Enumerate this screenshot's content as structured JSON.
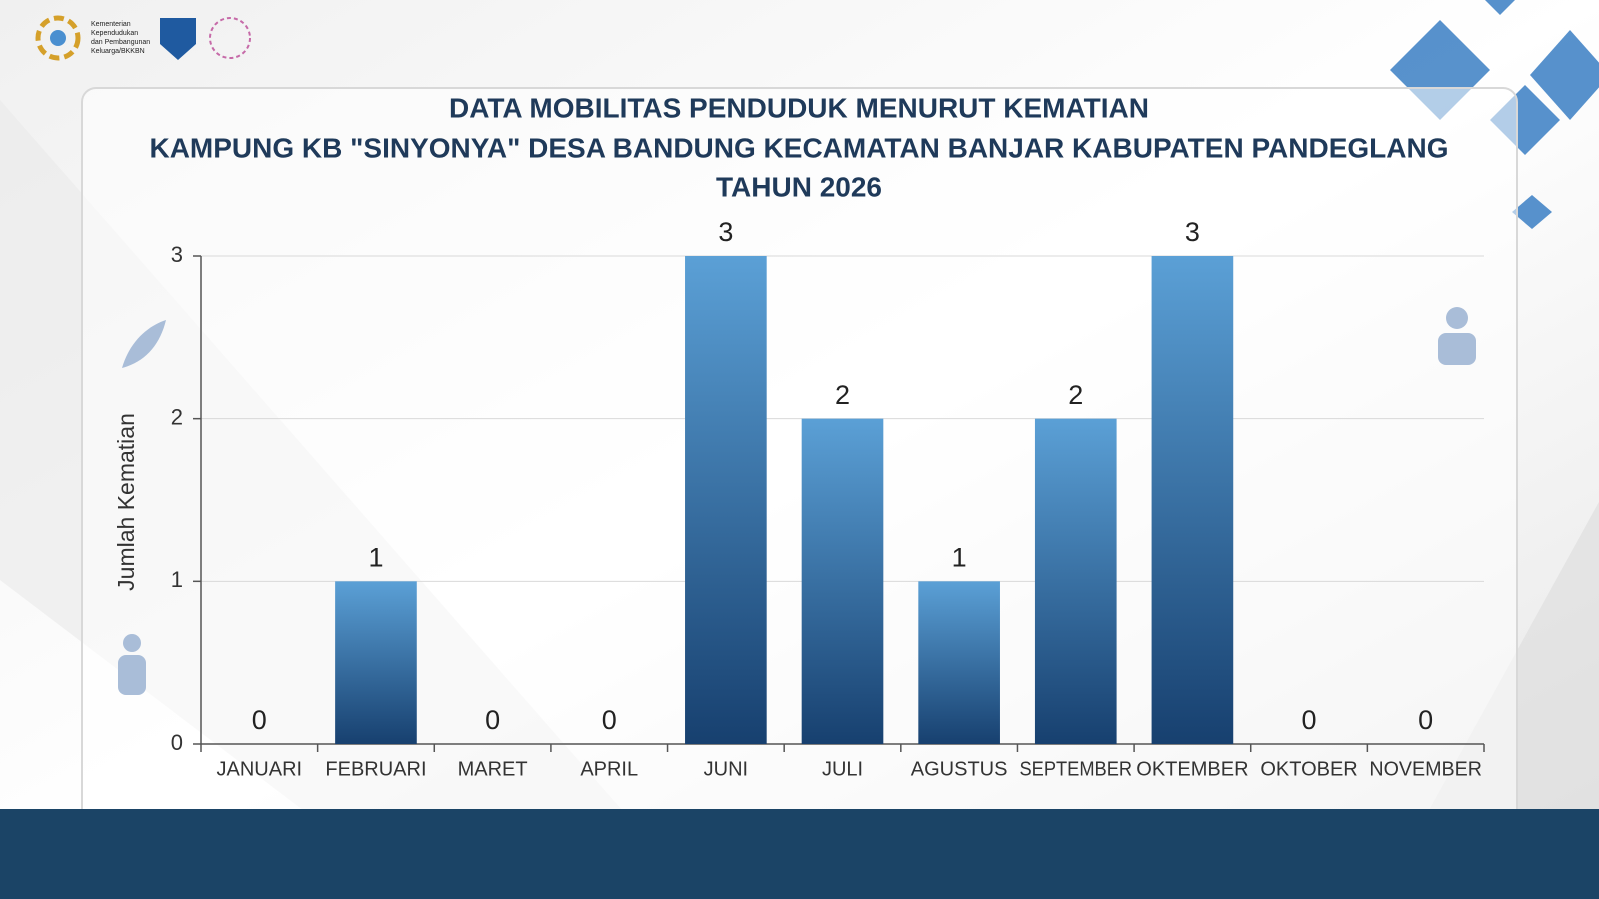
{
  "logo_text": [
    "Kementerian",
    "Kependudukan",
    "dan Pembangunan",
    "Keluarga/BKKBN"
  ],
  "chart_data": {
    "type": "bar",
    "title": [
      "DATA MOBILITAS PENDUDUK MENURUT KEMATIAN",
      "KAMPUNG KB \"SINYONYA\" DESA BANDUNG KECAMATAN BANJAR KABUPATEN PANDEGLANG",
      "TAHUN 2026"
    ],
    "y_label": "Jumlah Kematian",
    "categories": [
      "JANUARI",
      "FEBRUARI",
      "MARET",
      "APRIL",
      "JUNI",
      "JULI",
      "AGUSTUS",
      "SEPTEMBER",
      "OKTEMBER",
      "OKTOBER",
      "NOVEMBER"
    ],
    "values": [
      0,
      1,
      0,
      0,
      3,
      2,
      1,
      2,
      3,
      0,
      0
    ],
    "color": "#5ba0d6",
    "ylim": [
      0,
      3
    ],
    "yticks": [
      0,
      1,
      2,
      3
    ],
    "grid": true
  }
}
